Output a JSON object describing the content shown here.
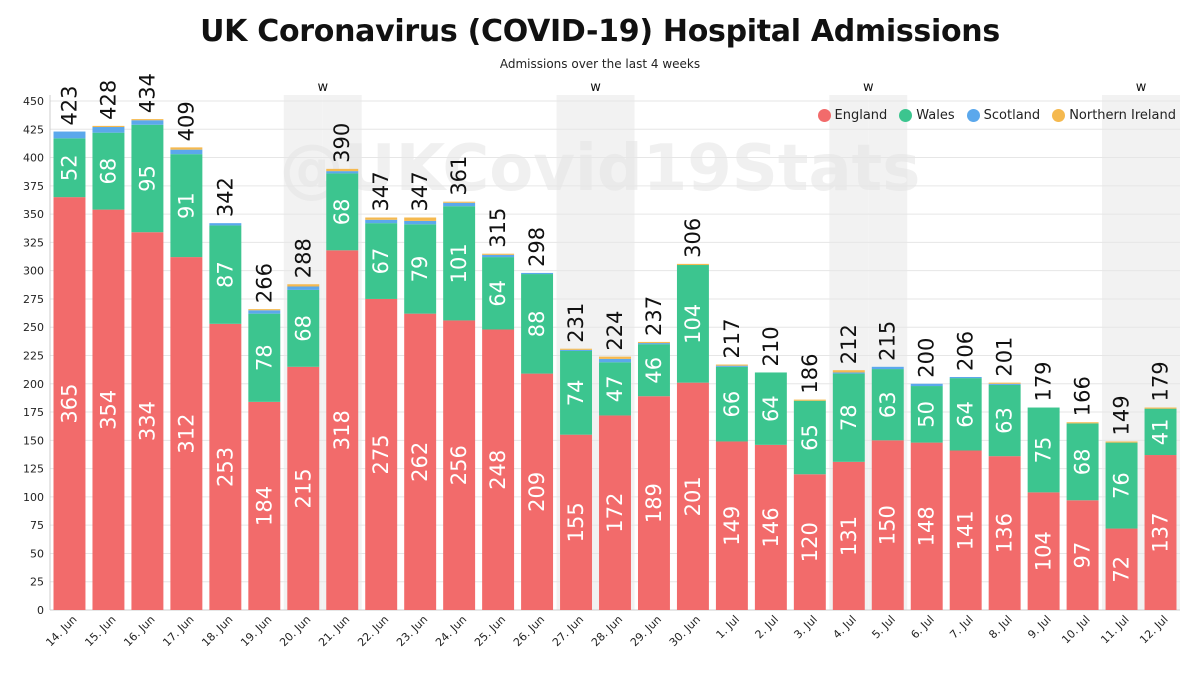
{
  "chart_data": {
    "type": "bar",
    "stacked": true,
    "title": "UK Coronavirus (COVID-19) Hospital Admissions",
    "subtitle": "Admissions over the last 4 weeks",
    "watermark": "@UKCovid19Stats",
    "xlabel": "",
    "ylabel": "",
    "ylim": [
      0,
      450
    ],
    "yticks": [
      0,
      25,
      50,
      75,
      100,
      125,
      150,
      175,
      200,
      225,
      250,
      275,
      300,
      325,
      350,
      375,
      400,
      425,
      450
    ],
    "grid": true,
    "legend_position": "top-right",
    "weekend_marker": "w",
    "weekend_indices": [
      6,
      7,
      13,
      14,
      20,
      21,
      27,
      28
    ],
    "weekend_label_indices": [
      6,
      13,
      20,
      27
    ],
    "categories": [
      "14. Jun",
      "15. Jun",
      "16. Jun",
      "17. Jun",
      "18. Jun",
      "19. Jun",
      "20. Jun",
      "21. Jun",
      "22. Jun",
      "23. Jun",
      "24. Jun",
      "25. Jun",
      "26. Jun",
      "27. Jun",
      "28. Jun",
      "29. Jun",
      "30. Jun",
      "1. Jul",
      "2. Jul",
      "3. Jul",
      "4. Jul",
      "5. Jul",
      "6. Jul",
      "7. Jul",
      "8. Jul",
      "9. Jul",
      "10. Jul",
      "11. Jul",
      "12. Jul"
    ],
    "totals": [
      423,
      428,
      434,
      409,
      342,
      266,
      288,
      390,
      347,
      347,
      361,
      315,
      298,
      231,
      224,
      237,
      306,
      217,
      210,
      186,
      212,
      215,
      200,
      206,
      201,
      179,
      166,
      149,
      179
    ],
    "series": [
      {
        "name": "England",
        "color": "#f26b6b",
        "values": [
          365,
          354,
          334,
          312,
          253,
          184,
          215,
          318,
          275,
          262,
          256,
          248,
          209,
          155,
          172,
          189,
          201,
          149,
          146,
          120,
          131,
          150,
          148,
          141,
          136,
          104,
          97,
          72,
          137
        ]
      },
      {
        "name": "Wales",
        "color": "#3cc58f",
        "values": [
          52,
          68,
          95,
          91,
          87,
          78,
          68,
          68,
          67,
          79,
          101,
          64,
          88,
          74,
          47,
          46,
          104,
          66,
          64,
          65,
          78,
          63,
          50,
          64,
          63,
          75,
          68,
          76,
          41
        ]
      },
      {
        "name": "Scotland",
        "color": "#5ba8ec",
        "values": [
          6,
          5,
          4,
          4,
          2,
          3,
          3,
          2,
          3,
          3,
          3,
          2,
          1,
          1,
          3,
          1,
          0,
          1,
          0,
          0,
          1,
          2,
          2,
          1,
          1,
          0,
          0,
          0,
          0
        ]
      },
      {
        "name": "Northern Ireland",
        "color": "#f5b94f",
        "values": [
          0,
          1,
          1,
          2,
          0,
          1,
          2,
          2,
          2,
          3,
          1,
          1,
          0,
          1,
          2,
          1,
          1,
          1,
          0,
          1,
          2,
          0,
          0,
          0,
          1,
          0,
          1,
          1,
          1
        ]
      }
    ]
  }
}
